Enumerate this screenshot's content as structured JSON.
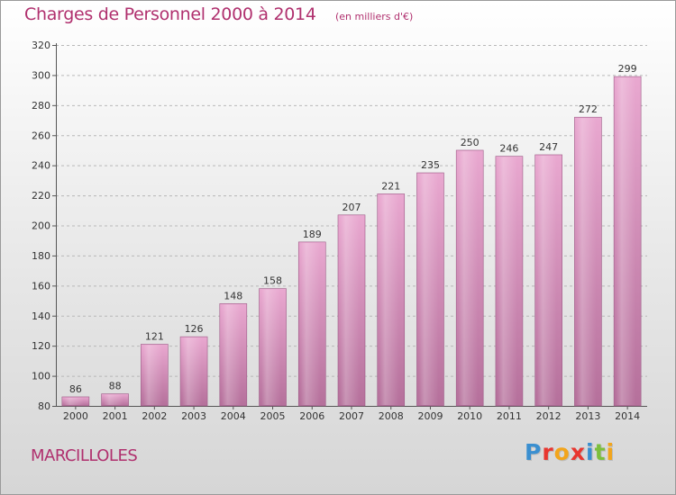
{
  "header": {
    "title": "Charges de Personnel 2000 à 2014",
    "subtitle": "(en milliers d'€)"
  },
  "footer": {
    "commune": "MARCILLOLES",
    "logo_letters": [
      "P",
      "r",
      "o",
      "x",
      "i",
      "t",
      "i"
    ],
    "logo_colors": [
      "#3a8fd0",
      "#e8362f",
      "#f2a51c",
      "#e8362f",
      "#3a8fd0",
      "#7cbf3c",
      "#f2a51c"
    ]
  },
  "colors": {
    "title": "#b0306e",
    "bar_light": "#e9a8d0",
    "bar_dark": "#b5709b"
  },
  "chart_data": {
    "type": "bar",
    "title": "Charges de Personnel 2000 à 2014",
    "subtitle": "(en milliers d'€)",
    "categories": [
      "2000",
      "2001",
      "2002",
      "2003",
      "2004",
      "2005",
      "2006",
      "2007",
      "2008",
      "2009",
      "2010",
      "2011",
      "2012",
      "2013",
      "2014"
    ],
    "values": [
      86,
      88,
      121,
      126,
      148,
      158,
      189,
      207,
      221,
      235,
      250,
      246,
      247,
      272,
      299
    ],
    "ylim": [
      80,
      320
    ],
    "yticks": [
      80,
      100,
      120,
      140,
      160,
      180,
      200,
      220,
      240,
      260,
      280,
      300,
      320
    ],
    "xlabel": "",
    "ylabel": "",
    "grid": true,
    "data_labels": true
  }
}
